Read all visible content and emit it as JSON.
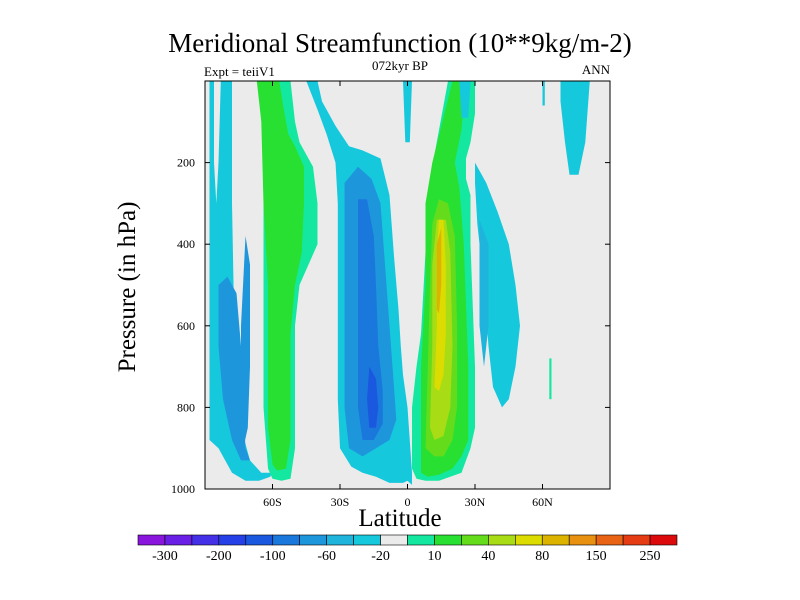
{
  "chart_data": {
    "type": "contour",
    "title": "Meridional Streamfunction (10**9kg/m-2)",
    "subtitle": "072kyr BP",
    "left_string": "Expt = teiiV1",
    "right_string": "ANN",
    "xlabel": "Latitude",
    "ylabel": "Pressure (in hPa)",
    "xlim": [
      -90,
      90
    ],
    "ylim": [
      1000,
      0
    ],
    "x_ticks": [
      {
        "value": -60,
        "label": "60S"
      },
      {
        "value": -30,
        "label": "30S"
      },
      {
        "value": 0,
        "label": "0"
      },
      {
        "value": 30,
        "label": "30N"
      },
      {
        "value": 60,
        "label": "60N"
      }
    ],
    "y_ticks": [
      {
        "value": 200,
        "label": "200"
      },
      {
        "value": 400,
        "label": "400"
      },
      {
        "value": 600,
        "label": "600"
      },
      {
        "value": 800,
        "label": "800"
      },
      {
        "value": 1000,
        "label": "1000"
      }
    ],
    "colorbar": {
      "labels": [
        "-300",
        "-200",
        "-100",
        "-60",
        "-20",
        "10",
        "40",
        "80",
        "150",
        "250"
      ],
      "colors": [
        "#8a16de",
        "#6a1fe6",
        "#4430e6",
        "#2540e6",
        "#1a58e0",
        "#1a78dc",
        "#1e96dc",
        "#1eb4dc",
        "#16c8dc",
        "#ebebeb",
        "#14e8a0",
        "#28e032",
        "#64dc1c",
        "#a8dc14",
        "#dcdc00",
        "#dcb400",
        "#e89010",
        "#e86414",
        "#e63c14",
        "#dc0a0a"
      ]
    },
    "background_color": "#ebebeb",
    "regions": [
      {
        "level": -20,
        "color": "#16c8dc",
        "poly": [
          [
            -88,
            0
          ],
          [
            -86,
            0
          ],
          [
            -86,
            200
          ],
          [
            -85,
            300
          ],
          [
            -84,
            200
          ],
          [
            -83,
            0
          ],
          [
            -78,
            0
          ],
          [
            -78,
            300
          ],
          [
            -77,
            600
          ],
          [
            -76,
            750
          ],
          [
            -74,
            850
          ],
          [
            -70,
            930
          ],
          [
            -65,
            960
          ],
          [
            -60,
            960
          ],
          [
            -58,
            700
          ],
          [
            -58,
            0
          ],
          [
            -52,
            0
          ],
          [
            -54,
            200
          ],
          [
            -55,
            400
          ],
          [
            -57,
            700
          ],
          [
            -59,
            940
          ],
          [
            -61,
            970
          ],
          [
            -66,
            980
          ],
          [
            -72,
            980
          ],
          [
            -78,
            960
          ],
          [
            -84,
            900
          ],
          [
            -88,
            880
          ]
        ]
      },
      {
        "level": -60,
        "color": "#1e96dc",
        "poly": [
          [
            -84,
            500
          ],
          [
            -80,
            480
          ],
          [
            -76,
            520
          ],
          [
            -74,
            650
          ],
          [
            -73,
            800
          ],
          [
            -72,
            900
          ],
          [
            -70,
            930
          ],
          [
            -74,
            930
          ],
          [
            -78,
            880
          ],
          [
            -82,
            780
          ],
          [
            -84,
            650
          ]
        ]
      },
      {
        "level": -60,
        "color": "#1e96dc",
        "poly": [
          [
            -72,
            380
          ],
          [
            -70,
            450
          ],
          [
            -70,
            700
          ],
          [
            -71,
            850
          ],
          [
            -73,
            900
          ],
          [
            -74,
            800
          ],
          [
            -74,
            600
          ]
        ]
      },
      {
        "level": -20,
        "color": "#16c8dc",
        "poly": [
          [
            -45,
            0
          ],
          [
            -40,
            0
          ],
          [
            -38,
            50
          ],
          [
            -32,
            110
          ],
          [
            -26,
            160
          ],
          [
            -20,
            170
          ],
          [
            -12,
            190
          ],
          [
            -8,
            280
          ],
          [
            -6,
            430
          ],
          [
            -4,
            560
          ],
          [
            -3,
            650
          ],
          [
            -2,
            720
          ],
          [
            0,
            800
          ],
          [
            2,
            960
          ],
          [
            2,
            990
          ],
          [
            0,
            980
          ],
          [
            -2,
            985
          ],
          [
            -8,
            985
          ],
          [
            -14,
            970
          ],
          [
            -20,
            960
          ],
          [
            -25,
            945
          ],
          [
            -30,
            900
          ],
          [
            -31,
            780
          ],
          [
            -31,
            500
          ],
          [
            -31,
            300
          ],
          [
            -32,
            200
          ],
          [
            -36,
            130
          ],
          [
            -40,
            70
          ]
        ]
      },
      {
        "level": -60,
        "color": "#1e96dc",
        "poly": [
          [
            -28,
            250
          ],
          [
            -22,
            210
          ],
          [
            -16,
            240
          ],
          [
            -12,
            300
          ],
          [
            -10,
            450
          ],
          [
            -8,
            600
          ],
          [
            -6,
            750
          ],
          [
            -5,
            830
          ],
          [
            -8,
            880
          ],
          [
            -14,
            900
          ],
          [
            -20,
            920
          ],
          [
            -26,
            900
          ],
          [
            -28,
            800
          ],
          [
            -28,
            500
          ]
        ]
      },
      {
        "level": -100,
        "color": "#1a78dc",
        "poly": [
          [
            -22,
            290
          ],
          [
            -18,
            290
          ],
          [
            -15,
            380
          ],
          [
            -14,
            500
          ],
          [
            -13,
            650
          ],
          [
            -11,
            760
          ],
          [
            -11,
            840
          ],
          [
            -15,
            880
          ],
          [
            -20,
            880
          ],
          [
            -22,
            800
          ],
          [
            -22,
            600
          ],
          [
            -22,
            420
          ]
        ]
      },
      {
        "level": -100,
        "color": "#1a58e0",
        "poly": [
          [
            -17,
            700
          ],
          [
            -14,
            730
          ],
          [
            -13,
            800
          ],
          [
            -14,
            850
          ],
          [
            -17,
            850
          ],
          [
            -18,
            780
          ]
        ]
      },
      {
        "level": 10,
        "color": "#14e8a0",
        "poly": [
          [
            -70,
            0
          ],
          [
            -52,
            0
          ],
          [
            -50,
            100
          ],
          [
            -48,
            150
          ],
          [
            -42,
            210
          ],
          [
            -40,
            300
          ],
          [
            -40,
            400
          ],
          [
            -44,
            450
          ],
          [
            -48,
            500
          ],
          [
            -50,
            600
          ],
          [
            -50,
            900
          ],
          [
            -52,
            975
          ],
          [
            -56,
            980
          ],
          [
            -60,
            975
          ],
          [
            -62,
            950
          ],
          [
            -64,
            800
          ],
          [
            -64,
            0
          ]
        ]
      },
      {
        "level": 40,
        "color": "#28e032",
        "poly": [
          [
            -67,
            0
          ],
          [
            -57,
            0
          ],
          [
            -55,
            70
          ],
          [
            -53,
            130
          ],
          [
            -50,
            160
          ],
          [
            -46,
            210
          ],
          [
            -46,
            300
          ],
          [
            -47,
            420
          ],
          [
            -50,
            500
          ],
          [
            -52,
            620
          ],
          [
            -52,
            880
          ],
          [
            -54,
            950
          ],
          [
            -58,
            955
          ],
          [
            -60,
            940
          ],
          [
            -62,
            850
          ],
          [
            -62,
            500
          ],
          [
            -64,
            300
          ],
          [
            -65,
            100
          ]
        ]
      },
      {
        "level": 10,
        "color": "#14e8a0",
        "poly": [
          [
            2,
            950
          ],
          [
            2,
            800
          ],
          [
            4,
            700
          ],
          [
            6,
            620
          ],
          [
            8,
            420
          ],
          [
            10,
            240
          ],
          [
            14,
            120
          ],
          [
            18,
            0
          ],
          [
            30,
            0
          ],
          [
            30,
            80
          ],
          [
            28,
            150
          ],
          [
            26,
            190
          ],
          [
            26,
            240
          ],
          [
            28,
            280
          ],
          [
            28,
            400
          ],
          [
            30,
            700
          ],
          [
            30,
            850
          ],
          [
            28,
            900
          ],
          [
            24,
            960
          ],
          [
            14,
            980
          ],
          [
            8,
            980
          ],
          [
            4,
            975
          ]
        ]
      },
      {
        "level": 40,
        "color": "#28e032",
        "poly": [
          [
            6,
            960
          ],
          [
            6,
            700
          ],
          [
            8,
            500
          ],
          [
            8,
            300
          ],
          [
            11,
            200
          ],
          [
            20,
            0
          ],
          [
            26,
            0
          ],
          [
            24,
            120
          ],
          [
            21,
            200
          ],
          [
            23,
            260
          ],
          [
            25,
            400
          ],
          [
            27,
            700
          ],
          [
            27,
            880
          ],
          [
            24,
            920
          ],
          [
            20,
            950
          ],
          [
            14,
            965
          ],
          [
            9,
            970
          ]
        ]
      },
      {
        "level": 80,
        "color": "#64dc1c",
        "poly": [
          [
            8,
            900
          ],
          [
            9,
            700
          ],
          [
            10,
            500
          ],
          [
            11,
            350
          ],
          [
            14,
            290
          ],
          [
            18,
            300
          ],
          [
            21,
            380
          ],
          [
            22,
            600
          ],
          [
            22,
            800
          ],
          [
            20,
            880
          ],
          [
            16,
            920
          ],
          [
            12,
            920
          ]
        ]
      },
      {
        "level": 80,
        "color": "#a8dc14",
        "poly": [
          [
            10,
            850
          ],
          [
            11,
            650
          ],
          [
            11,
            450
          ],
          [
            13,
            340
          ],
          [
            17,
            340
          ],
          [
            19,
            420
          ],
          [
            20,
            650
          ],
          [
            19,
            800
          ],
          [
            16,
            870
          ],
          [
            12,
            880
          ]
        ]
      },
      {
        "level": 150,
        "color": "#dcdc00",
        "poly": [
          [
            12,
            750
          ],
          [
            13,
            600
          ],
          [
            13,
            420
          ],
          [
            14,
            340
          ],
          [
            16,
            340
          ],
          [
            17,
            450
          ],
          [
            17,
            620
          ],
          [
            16,
            720
          ],
          [
            14,
            760
          ]
        ]
      },
      {
        "level": 150,
        "color": "#dcb400",
        "poly": [
          [
            13,
            560
          ],
          [
            13,
            400
          ],
          [
            15,
            360
          ],
          [
            15,
            500
          ],
          [
            14,
            570
          ]
        ]
      },
      {
        "level": -20,
        "color": "#16c8dc",
        "poly": [
          [
            30,
            200
          ],
          [
            35,
            250
          ],
          [
            40,
            320
          ],
          [
            45,
            400
          ],
          [
            48,
            500
          ],
          [
            50,
            600
          ],
          [
            48,
            700
          ],
          [
            45,
            780
          ],
          [
            42,
            800
          ],
          [
            38,
            750
          ],
          [
            36,
            650
          ],
          [
            34,
            500
          ],
          [
            31,
            350
          ],
          [
            30,
            250
          ]
        ]
      },
      {
        "level": -20,
        "color": "#1eb4dc",
        "poly": [
          [
            32,
            340
          ],
          [
            36,
            400
          ],
          [
            36,
            600
          ],
          [
            34,
            700
          ],
          [
            32,
            600
          ],
          [
            32,
            450
          ]
        ]
      },
      {
        "level": -20,
        "color": "#16c8dc",
        "poly": [
          [
            68,
            0
          ],
          [
            81,
            0
          ],
          [
            79,
            150
          ],
          [
            76,
            230
          ],
          [
            72,
            230
          ],
          [
            70,
            150
          ],
          [
            68,
            50
          ]
        ]
      },
      {
        "level": -20,
        "color": "#16c8dc",
        "poly": [
          [
            -2,
            0
          ],
          [
            2,
            0
          ],
          [
            1,
            150
          ],
          [
            -1,
            150
          ]
        ]
      },
      {
        "level": -20,
        "color": "#16c8dc",
        "poly": [
          [
            23,
            0
          ],
          [
            28,
            0
          ],
          [
            27,
            90
          ],
          [
            24,
            90
          ]
        ]
      },
      {
        "level": -20,
        "color": "#16c8dc",
        "poly": [
          [
            60,
            0
          ],
          [
            61,
            0
          ],
          [
            61,
            60
          ],
          [
            60,
            60
          ]
        ]
      },
      {
        "level": 10,
        "color": "#14e8a0",
        "poly": [
          [
            63,
            680
          ],
          [
            64,
            680
          ],
          [
            64,
            780
          ],
          [
            63,
            780
          ]
        ]
      }
    ]
  }
}
